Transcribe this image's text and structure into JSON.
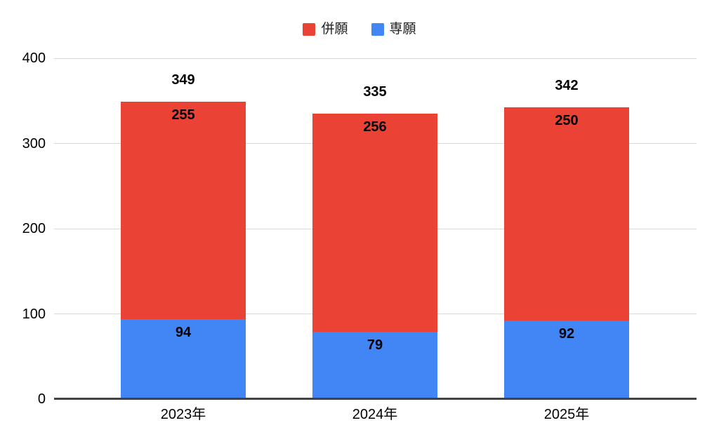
{
  "chart_data": {
    "type": "bar",
    "variant": "stacked-column",
    "title": "",
    "xlabel": "",
    "ylabel": "",
    "categories": [
      "2023年",
      "2024年",
      "2025年"
    ],
    "series": [
      {
        "name": "併願",
        "color": "#EA4335",
        "stack_order": "top",
        "values": [
          255,
          256,
          250
        ]
      },
      {
        "name": "専願",
        "color": "#4285F4",
        "stack_order": "bottom",
        "values": [
          94,
          79,
          92
        ]
      }
    ],
    "totals": [
      349,
      335,
      342
    ],
    "ylim": [
      0,
      400
    ],
    "y_ticks": [
      0,
      100,
      200,
      300,
      400
    ],
    "grid": true,
    "legend_position": "top",
    "colors": {
      "background": "#FFFFFF",
      "gridline": "#D9D9D9",
      "axis_line": "#424242",
      "label_text": "#000000",
      "tick_text": "#000000"
    }
  }
}
